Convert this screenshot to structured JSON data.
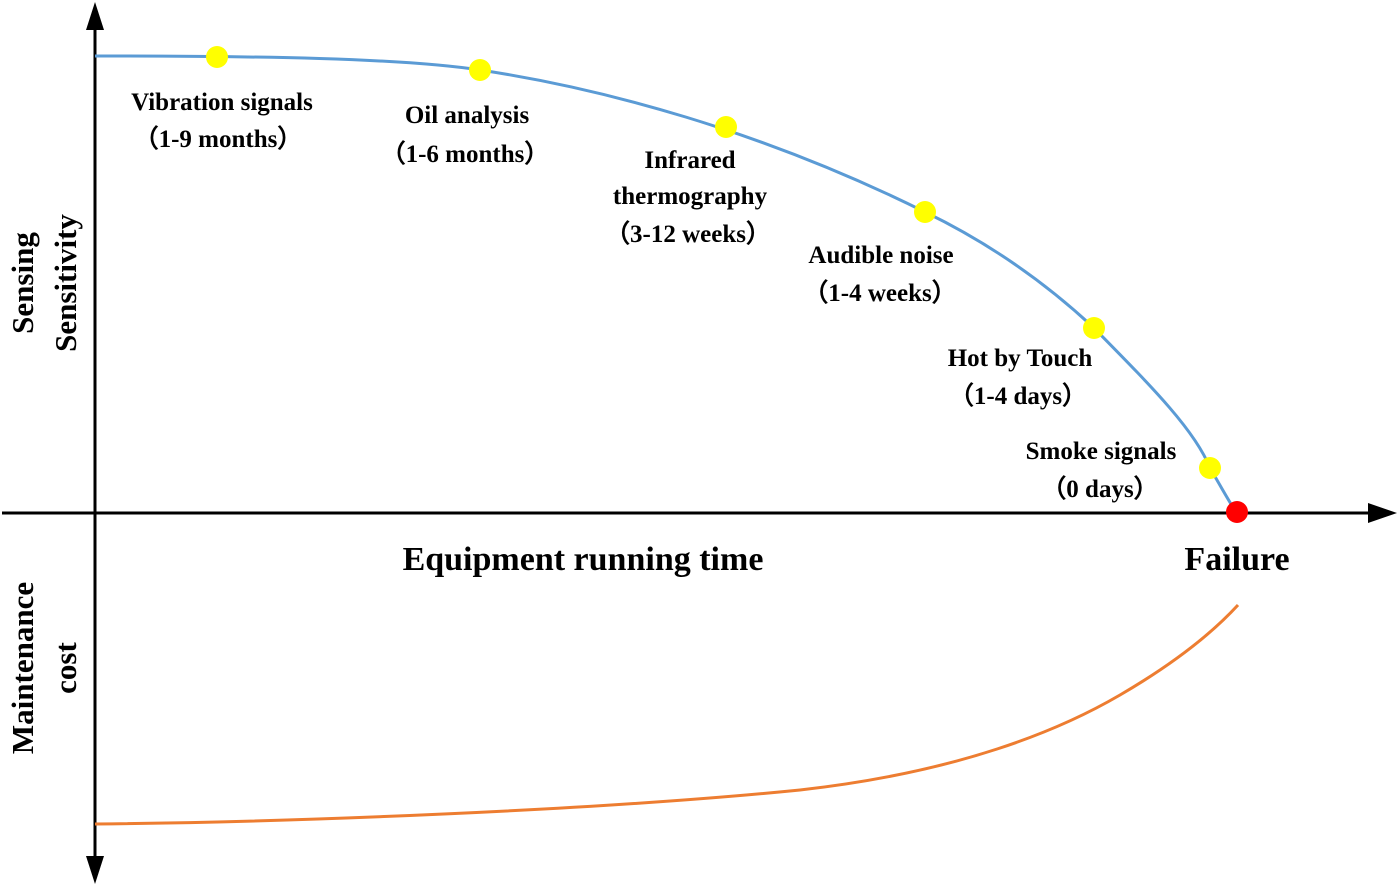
{
  "axes": {
    "y_upper_title": [
      "Sensing",
      "Sensitivity"
    ],
    "y_lower_title": [
      "Maintenance",
      "cost"
    ],
    "x_title": "Equipment running time",
    "failure_label": "Failure"
  },
  "signals": [
    {
      "name": "Vibration signals",
      "window": "（1-9 months）"
    },
    {
      "name": "Oil analysis",
      "window": "（1-6 months）"
    },
    {
      "name": "Infrared thermography",
      "window": "（3-12 weeks）"
    },
    {
      "name": "Audible noise",
      "window": "（1-4 weeks）"
    },
    {
      "name": "Hot by Touch",
      "window": "（1-4 days）"
    },
    {
      "name": "Smoke signals",
      "window": "（0 days）"
    }
  ],
  "colors": {
    "sensitivity_curve": "#5B9BD5",
    "cost_curve": "#ED7D31",
    "signal_point": "#FFFF00",
    "failure_point": "#FF0000",
    "axis": "#000000"
  }
}
